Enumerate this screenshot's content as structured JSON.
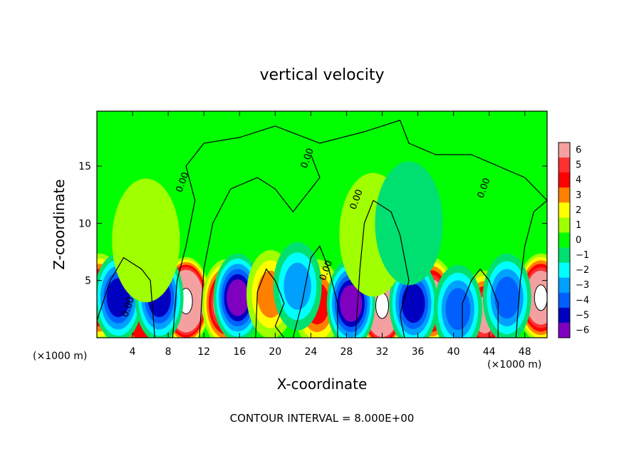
{
  "chart_data": {
    "type": "heatmap",
    "title": "vertical velocity",
    "xlabel": "X-coordinate",
    "ylabel": "Z-coordinate",
    "x_unit_left": "(×1000 m)",
    "x_unit_right": "(×1000 m)",
    "xlim": [
      0,
      50.5
    ],
    "ylim": [
      0,
      19.8
    ],
    "x_ticks": [
      4,
      8,
      12,
      16,
      20,
      24,
      28,
      32,
      36,
      40,
      44,
      48
    ],
    "y_ticks": [
      5,
      10,
      15
    ],
    "footer": "CONTOUR INTERVAL = 8.000E+00",
    "contour_labels": [
      {
        "text": "0.00",
        "x": 9.9,
        "z": 13.5
      },
      {
        "text": "0.00",
        "x": 23.9,
        "z": 15.6
      },
      {
        "text": "0.00",
        "x": 29.4,
        "z": 12.0
      },
      {
        "text": "0.00",
        "x": 43.7,
        "z": 13.0
      },
      {
        "text": "0.00",
        "x": 26.0,
        "z": 5.8
      },
      {
        "text": "0.00",
        "x": 3.8,
        "z": 2.6
      }
    ],
    "colorbar": {
      "levels": [
        6,
        5,
        4,
        3,
        2,
        1,
        0,
        -1,
        -2,
        -3,
        -4,
        -5,
        -6
      ],
      "colors": [
        "#f4a0a0",
        "#ff3030",
        "#ff0000",
        "#ff8000",
        "#ffff00",
        "#a0ff00",
        "#00ff00",
        "#00e070",
        "#00ffff",
        "#00a0ff",
        "#0060ff",
        "#0000c0",
        "#8000c0"
      ]
    },
    "features": [
      {
        "x": 10.0,
        "z": 3.2,
        "w": 12.0
      },
      {
        "x": 14.5,
        "z": 3.0,
        "w": 7.0
      },
      {
        "x": 32.0,
        "z": 2.8,
        "w": 12.0
      },
      {
        "x": 37.5,
        "z": 3.2,
        "w": 7.0
      },
      {
        "x": 43.5,
        "z": 2.0,
        "w": 6.0
      },
      {
        "x": 49.8,
        "z": 3.5,
        "w": 9.0
      },
      {
        "x": 0.3,
        "z": 3.5,
        "w": 6.0
      },
      {
        "x": 5.0,
        "z": 1.6,
        "w": 4.0
      },
      {
        "x": 24.7,
        "z": 3.0,
        "w": 4.0
      },
      {
        "x": 2.4,
        "z": 3.5,
        "w": -5.0
      },
      {
        "x": 7.0,
        "z": 3.5,
        "w": -5.0
      },
      {
        "x": 15.8,
        "z": 3.5,
        "w": -5.5
      },
      {
        "x": 28.5,
        "z": 3.0,
        "w": -6.0
      },
      {
        "x": 35.5,
        "z": 3.0,
        "w": -5.0
      },
      {
        "x": 40.5,
        "z": 2.5,
        "w": -4.0
      },
      {
        "x": 46.0,
        "z": 3.5,
        "w": -4.0
      },
      {
        "x": 19.5,
        "z": 3.8,
        "w": 3.0
      },
      {
        "x": 22.5,
        "z": 4.5,
        "w": -2.5
      },
      {
        "x": 5.5,
        "z": 8.5,
        "w": 1.0
      },
      {
        "x": 31.0,
        "z": 9.0,
        "w": 0.8
      },
      {
        "x": 35.0,
        "z": 10.0,
        "w": -0.6
      }
    ]
  }
}
